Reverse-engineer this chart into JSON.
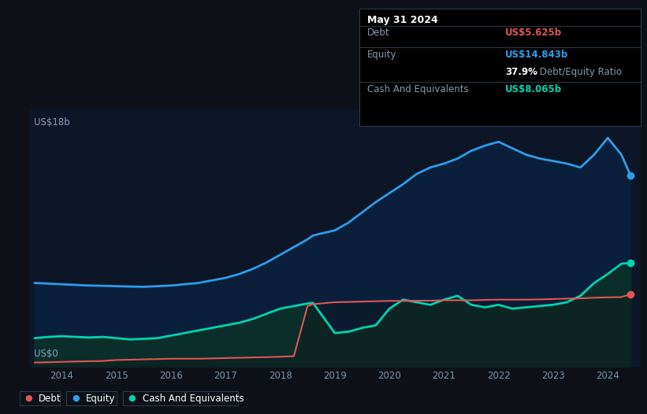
{
  "bg_color": "#0d1117",
  "plot_bg_color": "#0d1627",
  "grid_color": "#1a2840",
  "debt_color": "#e05555",
  "equity_color": "#2d9de8",
  "cash_color": "#00d4b0",
  "equity_fill_color": "#0a1f3c",
  "cash_fill_color": "#0a2e2a",
  "debt_fill_color": "#1a1a1a",
  "x_years": [
    2013.5,
    2013.75,
    2014.0,
    2014.25,
    2014.5,
    2014.75,
    2015.0,
    2015.25,
    2015.5,
    2015.75,
    2016.0,
    2016.25,
    2016.5,
    2016.75,
    2017.0,
    2017.25,
    2017.5,
    2017.75,
    2018.0,
    2018.25,
    2018.5,
    2018.6,
    2019.0,
    2019.25,
    2019.5,
    2019.75,
    2020.0,
    2020.25,
    2020.5,
    2020.75,
    2021.0,
    2021.25,
    2021.5,
    2021.75,
    2022.0,
    2022.25,
    2022.5,
    2022.75,
    2023.0,
    2023.25,
    2023.5,
    2023.75,
    2024.0,
    2024.25,
    2024.42
  ],
  "equity": [
    6.5,
    6.45,
    6.4,
    6.35,
    6.3,
    6.28,
    6.25,
    6.22,
    6.2,
    6.25,
    6.3,
    6.4,
    6.5,
    6.7,
    6.9,
    7.2,
    7.6,
    8.1,
    8.7,
    9.3,
    9.9,
    10.2,
    10.6,
    11.2,
    12.0,
    12.8,
    13.5,
    14.2,
    15.0,
    15.5,
    15.8,
    16.2,
    16.8,
    17.2,
    17.5,
    17.0,
    16.5,
    16.2,
    16.0,
    15.8,
    15.5,
    16.5,
    17.8,
    16.5,
    14.843
  ],
  "debt": [
    0.3,
    0.32,
    0.35,
    0.38,
    0.4,
    0.42,
    0.5,
    0.52,
    0.55,
    0.57,
    0.6,
    0.6,
    0.6,
    0.62,
    0.65,
    0.67,
    0.7,
    0.72,
    0.75,
    0.8,
    4.7,
    4.85,
    5.0,
    5.02,
    5.05,
    5.08,
    5.1,
    5.1,
    5.12,
    5.12,
    5.15,
    5.15,
    5.15,
    5.18,
    5.2,
    5.2,
    5.2,
    5.22,
    5.25,
    5.28,
    5.3,
    5.35,
    5.38,
    5.4,
    5.625
  ],
  "cash": [
    2.2,
    2.3,
    2.35,
    2.3,
    2.25,
    2.3,
    2.2,
    2.1,
    2.15,
    2.2,
    2.4,
    2.6,
    2.8,
    3.0,
    3.2,
    3.4,
    3.7,
    4.1,
    4.5,
    4.7,
    4.9,
    4.95,
    2.6,
    2.7,
    3.0,
    3.2,
    4.5,
    5.2,
    5.0,
    4.8,
    5.2,
    5.5,
    4.8,
    4.6,
    4.8,
    4.5,
    4.6,
    4.7,
    4.8,
    5.0,
    5.5,
    6.5,
    7.2,
    8.0,
    8.065
  ],
  "x_ticks": [
    2014,
    2015,
    2016,
    2017,
    2018,
    2019,
    2020,
    2021,
    2022,
    2023,
    2024
  ],
  "x_tick_labels": [
    "2014",
    "2015",
    "2016",
    "2017",
    "2018",
    "2019",
    "2020",
    "2021",
    "2022",
    "2023",
    "2024"
  ],
  "ylim": [
    0,
    20
  ],
  "y_label_18": "US$18b",
  "y_label_0": "US$0",
  "tooltip_date": "May 31 2024",
  "tooltip_debt_label": "Debt",
  "tooltip_debt_value": "US$5.625b",
  "tooltip_equity_label": "Equity",
  "tooltip_equity_value": "US$14.843b",
  "tooltip_ratio_bold": "37.9%",
  "tooltip_ratio_text": " Debt/Equity Ratio",
  "tooltip_cash_label": "Cash And Equivalents",
  "tooltip_cash_value": "US$8.065b",
  "legend_labels": [
    "Debt",
    "Equity",
    "Cash And Equivalents"
  ],
  "legend_colors": [
    "#e05555",
    "#2d9de8",
    "#00d4b0"
  ]
}
